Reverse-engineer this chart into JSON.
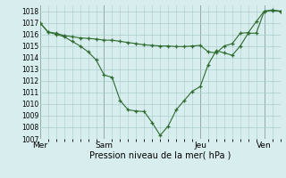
{
  "bg_color": "#d8eeee",
  "grid_color": "#aacccc",
  "line_color": "#2d6a2d",
  "marker_color": "#2d6a2d",
  "vline_color": "#556655",
  "ylim": [
    1007,
    1018.5
  ],
  "yticks": [
    1007,
    1008,
    1009,
    1010,
    1011,
    1012,
    1013,
    1014,
    1015,
    1016,
    1017,
    1018
  ],
  "xlabel": "Pression niveau de la mer( hPa )",
  "xtick_labels": [
    "Mer",
    "Sam",
    "Jeu",
    "Ven"
  ],
  "xtick_positions": [
    0,
    8,
    20,
    28
  ],
  "vline_positions": [
    0,
    8,
    20,
    28
  ],
  "xlim": [
    0,
    30
  ],
  "line1_x": [
    0,
    1,
    2,
    3,
    4,
    5,
    6,
    7,
    8,
    9,
    10,
    11,
    12,
    13,
    14,
    15,
    16,
    17,
    18,
    19,
    20,
    21,
    22,
    23,
    24,
    25,
    26,
    27,
    28,
    29,
    30
  ],
  "line1_y": [
    1017.0,
    1016.2,
    1016.1,
    1015.9,
    1015.8,
    1015.7,
    1015.65,
    1015.6,
    1015.5,
    1015.5,
    1015.4,
    1015.3,
    1015.2,
    1015.1,
    1015.05,
    1015.0,
    1015.0,
    1014.95,
    1014.95,
    1015.0,
    1015.05,
    1014.5,
    1014.4,
    1015.0,
    1015.2,
    1016.1,
    1016.15,
    1017.1,
    1018.0,
    1018.05,
    1018.0
  ],
  "line2_x": [
    0,
    1,
    2,
    3,
    4,
    5,
    6,
    7,
    8,
    9,
    10,
    11,
    12,
    13,
    14,
    15,
    16,
    17,
    18,
    19,
    20,
    21,
    22,
    23,
    24,
    25,
    26,
    27,
    28,
    29,
    30
  ],
  "line2_y": [
    1017.0,
    1016.2,
    1016.0,
    1015.8,
    1015.4,
    1015.0,
    1014.5,
    1013.8,
    1012.5,
    1012.3,
    1010.3,
    1009.5,
    1009.4,
    1009.35,
    1008.4,
    1007.3,
    1008.1,
    1009.5,
    1010.3,
    1011.1,
    1011.5,
    1013.4,
    1014.6,
    1014.4,
    1014.2,
    1015.0,
    1016.1,
    1016.1,
    1018.0,
    1018.1,
    1018.0
  ],
  "ytick_fontsize": 5.5,
  "xtick_fontsize": 6.5,
  "xlabel_fontsize": 7
}
